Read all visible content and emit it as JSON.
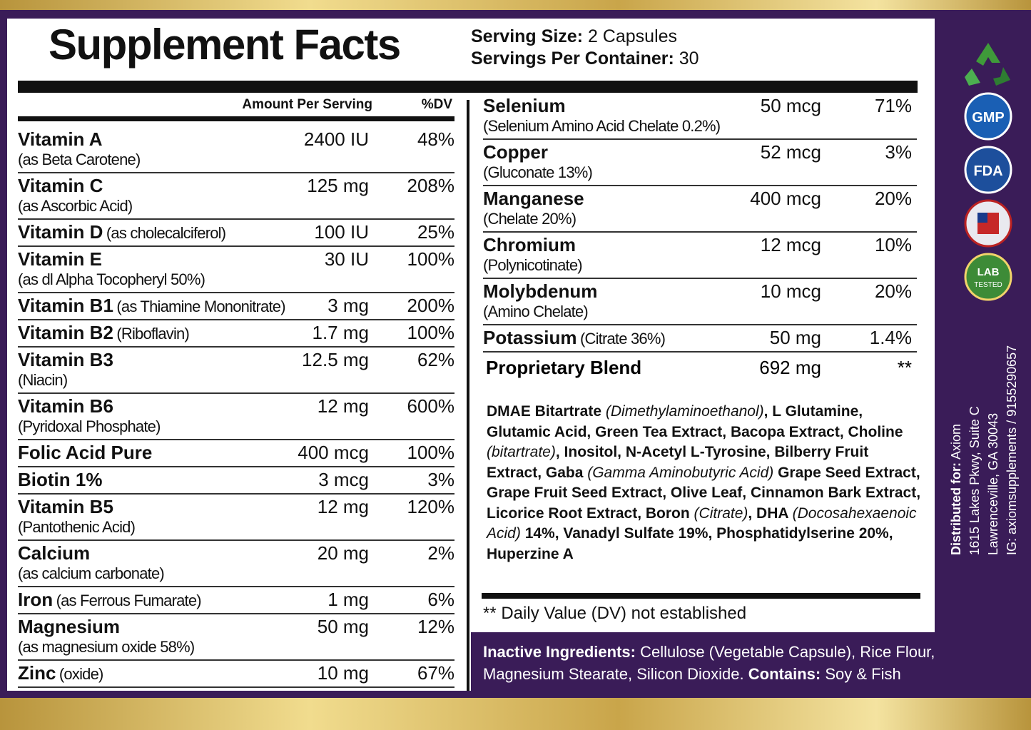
{
  "header": {
    "title": "Supplement Facts",
    "serving_size_label": "Serving Size:",
    "serving_size": "2 Capsules",
    "servings_label": "Servings Per Container:",
    "servings": "30"
  },
  "left_table": {
    "columns": [
      "Amount Per Serving",
      "%DV"
    ],
    "rows": [
      {
        "name": "Vitamin A",
        "detail": "(as Beta Carotene)",
        "amount": "2400 IU",
        "dv": "48%"
      },
      {
        "name": "Vitamin C",
        "detail": "(as Ascorbic Acid)",
        "amount": "125 mg",
        "dv": "208%"
      },
      {
        "name": "Vitamin D",
        "detail": "(as cholecalciferol)",
        "inline": true,
        "amount": "100 IU",
        "dv": "25%"
      },
      {
        "name": "Vitamin E",
        "detail": "(as dl Alpha Tocopheryl 50%)",
        "amount": "30 IU",
        "dv": "100%"
      },
      {
        "name": "Vitamin B1",
        "detail": "(as Thiamine Mononitrate)",
        "inline": true,
        "amount": "3 mg",
        "dv": "200%"
      },
      {
        "name": "Vitamin B2",
        "detail": "(Riboflavin)",
        "inline": true,
        "amount": "1.7 mg",
        "dv": "100%"
      },
      {
        "name": "Vitamin B3",
        "detail": "(Niacin)",
        "amount": "12.5 mg",
        "dv": "62%"
      },
      {
        "name": "Vitamin B6",
        "detail": "(Pyridoxal Phosphate)",
        "amount": "12 mg",
        "dv": "600%"
      },
      {
        "name": "Folic Acid Pure",
        "amount": "400 mcg",
        "dv": "100%"
      },
      {
        "name": "Biotin 1%",
        "amount": "3 mcg",
        "dv": "3%"
      },
      {
        "name": "Vitamin B5",
        "detail": "(Pantothenic Acid)",
        "amount": "12 mg",
        "dv": "120%"
      },
      {
        "name": "Calcium",
        "detail": "(as calcium carbonate)",
        "amount": "20 mg",
        "dv": "2%"
      },
      {
        "name": "Iron",
        "detail": "(as Ferrous Fumarate)",
        "inline": true,
        "amount": "1 mg",
        "dv": "6%"
      },
      {
        "name": "Magnesium",
        "detail": "(as magnesium oxide 58%)",
        "amount": "50 mg",
        "dv": "12%"
      },
      {
        "name": "Zinc",
        "detail": "(oxide)",
        "inline": true,
        "amount": "10 mg",
        "dv": "67%"
      }
    ]
  },
  "right_table": {
    "rows": [
      {
        "name": "Selenium",
        "detail": "(Selenium Amino Acid Chelate 0.2%)",
        "amount": "50 mcg",
        "dv": "71%"
      },
      {
        "name": "Copper",
        "detail": "(Gluconate 13%)",
        "amount": "52 mcg",
        "dv": "3%"
      },
      {
        "name": "Manganese",
        "detail": "(Chelate 20%)",
        "amount": "400 mcg",
        "dv": "20%"
      },
      {
        "name": "Chromium",
        "detail": "(Polynicotinate)",
        "amount": "12 mcg",
        "dv": "10%"
      },
      {
        "name": "Molybdenum",
        "detail": "(Amino Chelate)",
        "amount": "10 mcg",
        "dv": "20%"
      },
      {
        "name": "Potassium",
        "detail": "(Citrate 36%)",
        "inline": true,
        "amount": "50 mg",
        "dv": "1.4%"
      }
    ]
  },
  "blend": {
    "name": "Proprietary Blend",
    "amount": "692 mg",
    "dv": "**",
    "segments": [
      {
        "text": "DMAE Bitartrate ",
        "italic": false
      },
      {
        "text": "(Dimethylaminoethanol)",
        "italic": true
      },
      {
        "text": ", L Glutamine, Glutamic Acid, Green Tea Extract, Bacopa Extract, Choline ",
        "italic": false
      },
      {
        "text": "(bitartrate)",
        "italic": true
      },
      {
        "text": ", Inositol, N-Acetyl L-Tyrosine, Bilberry Fruit Extract, Gaba ",
        "italic": false
      },
      {
        "text": "(Gamma Aminobutyric Acid)",
        "italic": true
      },
      {
        "text": " Grape Seed Extract, Grape Fruit Seed Extract, Olive Leaf, Cinnamon Bark Extract, Licorice Root Extract, Boron ",
        "italic": false
      },
      {
        "text": "(Citrate)",
        "italic": true
      },
      {
        "text": ", DHA ",
        "italic": false
      },
      {
        "text": "(Docosahexaenoic Acid)",
        "italic": true
      },
      {
        "text": " 14%, Vanadyl Sulfate 19%, Phosphatidylserine 20%, Huperzine A",
        "italic": false
      }
    ]
  },
  "footnote": "** Daily Value (DV) not established",
  "inactive": {
    "label": "Inactive Ingredients:",
    "text": "Cellulose (Vegetable Capsule), Rice Flour, Magnesium Stearate, Silicon Dioxide.",
    "contains_label": "Contains:",
    "contains": "Soy & Fish"
  },
  "distributor": {
    "label": "Distributed for:",
    "name": "Axiom",
    "address": "1615 Lakes Pkwy, Suite C",
    "city": "Lawrenceville, GA 30043",
    "contact": "IG: axiomsupplements / 9155290657"
  },
  "badges": [
    "GMP",
    "FDA",
    "LAB",
    "TESTED"
  ]
}
